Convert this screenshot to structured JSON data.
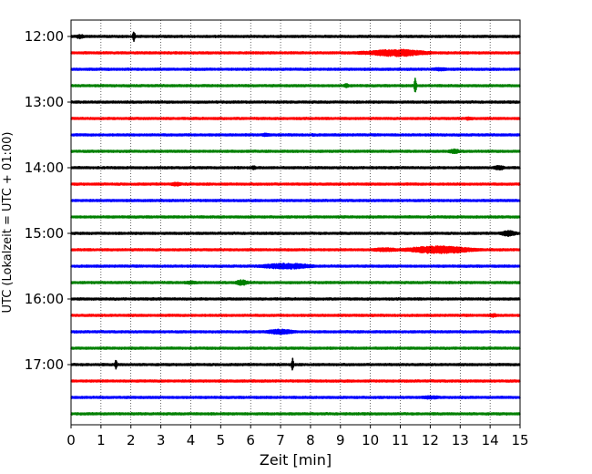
{
  "chart_data": {
    "type": "line",
    "subtype": "helicorder-seismogram",
    "xlabel": "Zeit  [min]",
    "ylabel": "UTC (Lokalzeit = UTC + 01:00)",
    "xlim": [
      0,
      15
    ],
    "x_ticks": [
      "0",
      "1",
      "2",
      "3",
      "4",
      "5",
      "6",
      "7",
      "8",
      "9",
      "10",
      "11",
      "12",
      "13",
      "14",
      "15"
    ],
    "y_ticks": [
      "12:00",
      "13:00",
      "14:00",
      "15:00",
      "16:00",
      "17:00"
    ],
    "vertical_grid": true,
    "line_minutes": 15,
    "colors": [
      "#000000",
      "#ff0000",
      "#0000ff",
      "#008000"
    ],
    "traces": [
      {
        "start": "12:00",
        "events": [
          {
            "min": 0.3,
            "amp": 0.35,
            "dur": 0.25
          },
          {
            "min": 2.1,
            "amp": 1.0,
            "dur": 0.06
          }
        ]
      },
      {
        "start": "12:15",
        "events": [
          {
            "min": 10.9,
            "amp": 0.55,
            "dur": 1.8
          },
          {
            "min": 9.8,
            "amp": 0.25,
            "dur": 0.8
          }
        ]
      },
      {
        "start": "12:30",
        "events": [
          {
            "min": 12.3,
            "amp": 0.25,
            "dur": 0.6
          }
        ]
      },
      {
        "start": "12:45",
        "events": [
          {
            "min": 11.5,
            "amp": 1.2,
            "dur": 0.06
          },
          {
            "min": 9.2,
            "amp": 0.3,
            "dur": 0.2
          }
        ]
      },
      {
        "start": "13:00",
        "events": []
      },
      {
        "start": "13:15",
        "events": [
          {
            "min": 13.3,
            "amp": 0.25,
            "dur": 0.3
          }
        ]
      },
      {
        "start": "13:30",
        "events": [
          {
            "min": 6.5,
            "amp": 0.25,
            "dur": 0.3
          },
          {
            "min": 8.1,
            "amp": 0.2,
            "dur": 0.2
          }
        ]
      },
      {
        "start": "13:45",
        "events": [
          {
            "min": 12.8,
            "amp": 0.35,
            "dur": 0.4
          }
        ]
      },
      {
        "start": "14:00",
        "events": [
          {
            "min": 6.1,
            "amp": 0.3,
            "dur": 0.15
          },
          {
            "min": 14.3,
            "amp": 0.35,
            "dur": 0.4
          }
        ]
      },
      {
        "start": "14:15",
        "events": [
          {
            "min": 3.5,
            "amp": 0.3,
            "dur": 0.4
          }
        ]
      },
      {
        "start": "14:30",
        "events": []
      },
      {
        "start": "14:45",
        "events": []
      },
      {
        "start": "15:00",
        "events": [
          {
            "min": 14.6,
            "amp": 0.45,
            "dur": 0.5
          }
        ]
      },
      {
        "start": "15:15",
        "events": [
          {
            "min": 12.3,
            "amp": 0.6,
            "dur": 2.0
          },
          {
            "min": 10.5,
            "amp": 0.3,
            "dur": 1.0
          }
        ]
      },
      {
        "start": "15:30",
        "events": [
          {
            "min": 7.2,
            "amp": 0.45,
            "dur": 1.6
          }
        ]
      },
      {
        "start": "15:45",
        "events": [
          {
            "min": 5.7,
            "amp": 0.45,
            "dur": 0.4
          },
          {
            "min": 4.0,
            "amp": 0.25,
            "dur": 0.5
          }
        ]
      },
      {
        "start": "16:00",
        "events": []
      },
      {
        "start": "16:15",
        "events": [
          {
            "min": 14.1,
            "amp": 0.3,
            "dur": 0.3
          }
        ]
      },
      {
        "start": "16:30",
        "events": [
          {
            "min": 7.0,
            "amp": 0.4,
            "dur": 0.9
          }
        ]
      },
      {
        "start": "16:45",
        "events": []
      },
      {
        "start": "17:00",
        "events": [
          {
            "min": 1.5,
            "amp": 0.9,
            "dur": 0.06
          },
          {
            "min": 7.4,
            "amp": 1.0,
            "dur": 0.06
          }
        ]
      },
      {
        "start": "17:15",
        "events": []
      },
      {
        "start": "17:30",
        "events": [
          {
            "min": 12.0,
            "amp": 0.25,
            "dur": 0.8
          }
        ]
      },
      {
        "start": "17:45",
        "events": []
      }
    ]
  }
}
